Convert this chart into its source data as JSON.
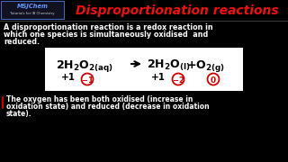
{
  "bg_color": "#000000",
  "title": "Disproportionation reactions",
  "title_color": "#ee1111",
  "logo_text1": "MSJChem",
  "logo_text2": "Tutorials for IB Chemistry",
  "logo_color1": "#6699ff",
  "logo_color2": "#cccccc",
  "logo_bg": "#111122",
  "logo_border": "#4466bb",
  "intro_line1": "A disproportionation reaction is a redox reaction in",
  "intro_line2": "which one species is simultaneously oxidised  and",
  "intro_line3": "reduced.",
  "equation_box_bg": "#ffffff",
  "circle_color": "#cc0000",
  "bottom_line1": "The oxygen has been both oxidised (increase in",
  "bottom_line2": "oxidation state) and reduced (decrease in oxidation",
  "bottom_line3": "state).",
  "bullet_color": "#cc0000",
  "text_color": "#ffffff",
  "eq_text_color": "#000000"
}
